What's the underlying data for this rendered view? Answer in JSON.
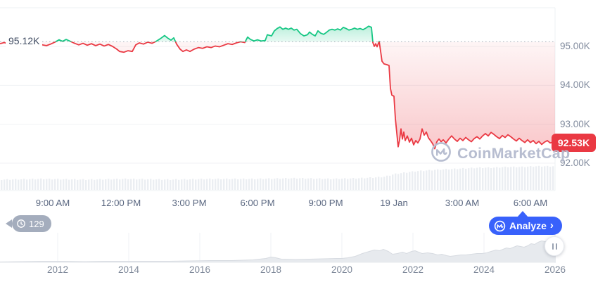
{
  "open_price": {
    "label": "95.12K"
  },
  "current_price": {
    "label": "92.53K"
  },
  "watermark": {
    "name": "CoinMarketCap"
  },
  "history_badge": {
    "count": "129"
  },
  "analyze": {
    "label": "Analyze",
    "chevron": "›"
  },
  "chart_data": {
    "type": "line",
    "title": "Crypto price chart (24h) with all-time range navigator",
    "baseline_price_k": 95.12,
    "last_price_k": 92.53,
    "unit": "K USD",
    "ylim_k": [
      91.8,
      96.0
    ],
    "grid": true,
    "colors": {
      "up": "#16c784",
      "down": "#ea3943",
      "accent_blue": "#3861fb",
      "badge_red": "#ea3943",
      "badge_gray": "#a4adbd",
      "baseline_dotted": "#a8aeba"
    },
    "y_axis": {
      "ticks": [
        {
          "label": "95.00K",
          "value": 95
        },
        {
          "label": "94.00K",
          "value": 94
        },
        {
          "label": "93.00K",
          "value": 93
        },
        {
          "label": "92.00K",
          "value": 92
        }
      ]
    },
    "x_axis": {
      "ticks": [
        "9:00 AM",
        "12:00 PM",
        "3:00 PM",
        "6:00 PM",
        "9:00 PM",
        "19 Jan",
        "3:00 AM",
        "6:00 AM"
      ]
    },
    "price_points": [
      [
        0,
        95.07
      ],
      [
        6,
        95.1
      ],
      [
        12,
        95.06
      ],
      [
        18,
        95.09
      ],
      [
        24,
        95.05
      ],
      [
        30,
        95.08
      ],
      [
        36,
        95.04
      ],
      [
        42,
        95.08
      ],
      [
        48,
        95.05
      ],
      [
        54,
        95.09
      ],
      [
        60,
        95.04
      ],
      [
        66,
        95.02
      ],
      [
        72,
        95.06
      ],
      [
        78,
        95.11
      ],
      [
        84,
        95.17
      ],
      [
        89,
        95.13
      ],
      [
        94,
        95.18
      ],
      [
        100,
        95.13
      ],
      [
        106,
        95.08
      ],
      [
        112,
        95.04
      ],
      [
        118,
        95.08
      ],
      [
        124,
        95.03
      ],
      [
        130,
        95.07
      ],
      [
        136,
        95.02
      ],
      [
        142,
        95.06
      ],
      [
        148,
        95.01
      ],
      [
        154,
        95.05
      ],
      [
        160,
        95.0
      ],
      [
        166,
        94.93
      ],
      [
        170,
        94.87
      ],
      [
        176,
        94.85
      ],
      [
        182,
        94.89
      ],
      [
        188,
        94.87
      ],
      [
        193,
        95.04
      ],
      [
        198,
        95.09
      ],
      [
        204,
        95.06
      ],
      [
        210,
        95.11
      ],
      [
        216,
        95.08
      ],
      [
        222,
        95.13
      ],
      [
        228,
        95.2
      ],
      [
        234,
        95.28
      ],
      [
        238,
        95.22
      ],
      [
        243,
        95.16
      ],
      [
        247,
        95.22
      ],
      [
        251,
        95.06
      ],
      [
        256,
        94.93
      ],
      [
        260,
        94.87
      ],
      [
        265,
        94.91
      ],
      [
        270,
        94.87
      ],
      [
        276,
        94.93
      ],
      [
        282,
        94.97
      ],
      [
        288,
        94.95
      ],
      [
        294,
        94.99
      ],
      [
        300,
        94.97
      ],
      [
        306,
        95.01
      ],
      [
        312,
        94.99
      ],
      [
        318,
        95.03
      ],
      [
        324,
        95.07
      ],
      [
        330,
        95.05
      ],
      [
        336,
        95.09
      ],
      [
        342,
        95.12
      ],
      [
        348,
        95.1
      ],
      [
        352,
        95.24
      ],
      [
        356,
        95.18
      ],
      [
        361,
        95.14
      ],
      [
        366,
        95.17
      ],
      [
        371,
        95.14
      ],
      [
        377,
        95.15
      ],
      [
        380,
        95.3
      ],
      [
        386,
        95.27
      ],
      [
        390,
        95.4
      ],
      [
        394,
        95.46
      ],
      [
        398,
        95.5
      ],
      [
        402,
        95.44
      ],
      [
        406,
        95.47
      ],
      [
        410,
        95.44
      ],
      [
        414,
        95.47
      ],
      [
        418,
        95.42
      ],
      [
        422,
        95.44
      ],
      [
        427,
        95.33
      ],
      [
        432,
        95.27
      ],
      [
        437,
        95.3
      ],
      [
        440,
        95.37
      ],
      [
        444,
        95.31
      ],
      [
        448,
        95.27
      ],
      [
        452,
        95.4
      ],
      [
        456,
        95.34
      ],
      [
        460,
        95.31
      ],
      [
        464,
        95.36
      ],
      [
        468,
        95.42
      ],
      [
        472,
        95.44
      ],
      [
        476,
        95.42
      ],
      [
        480,
        95.45
      ],
      [
        484,
        95.42
      ],
      [
        488,
        95.49
      ],
      [
        492,
        95.46
      ],
      [
        496,
        95.42
      ],
      [
        500,
        95.44
      ],
      [
        504,
        95.47
      ],
      [
        508,
        95.44
      ],
      [
        512,
        95.46
      ],
      [
        516,
        95.43
      ],
      [
        520,
        95.47
      ],
      [
        524,
        95.52
      ],
      [
        528,
        95.49
      ],
      [
        530,
        95.1
      ],
      [
        532,
        95.0
      ],
      [
        534,
        95.07
      ],
      [
        536,
        94.99
      ],
      [
        539,
        95.13
      ],
      [
        541,
        94.88
      ],
      [
        543,
        94.62
      ],
      [
        546,
        94.55
      ],
      [
        550,
        94.53
      ],
      [
        553,
        94.51
      ],
      [
        555,
        93.92
      ],
      [
        557,
        93.75
      ],
      [
        560,
        93.72
      ],
      [
        562,
        93.15
      ],
      [
        564,
        92.78
      ],
      [
        566,
        92.42
      ],
      [
        568,
        92.6
      ],
      [
        570,
        92.88
      ],
      [
        572,
        92.62
      ],
      [
        574,
        92.8
      ],
      [
        576,
        92.58
      ],
      [
        579,
        92.7
      ],
      [
        582,
        92.54
      ],
      [
        585,
        92.64
      ],
      [
        588,
        92.47
      ],
      [
        591,
        92.58
      ],
      [
        594,
        92.52
      ],
      [
        597,
        92.62
      ],
      [
        600,
        92.88
      ],
      [
        603,
        92.72
      ],
      [
        606,
        92.8
      ],
      [
        609,
        92.65
      ],
      [
        612,
        92.58
      ],
      [
        615,
        92.5
      ],
      [
        618,
        92.37
      ],
      [
        621,
        92.55
      ],
      [
        624,
        92.62
      ],
      [
        627,
        92.55
      ],
      [
        630,
        92.6
      ],
      [
        634,
        92.52
      ],
      [
        638,
        92.62
      ],
      [
        642,
        92.7
      ],
      [
        646,
        92.62
      ],
      [
        650,
        92.56
      ],
      [
        654,
        92.64
      ],
      [
        658,
        92.58
      ],
      [
        662,
        92.66
      ],
      [
        666,
        92.6
      ],
      [
        670,
        92.55
      ],
      [
        674,
        92.63
      ],
      [
        678,
        92.68
      ],
      [
        682,
        92.62
      ],
      [
        686,
        92.7
      ],
      [
        690,
        92.76
      ],
      [
        694,
        92.7
      ],
      [
        698,
        92.79
      ],
      [
        702,
        92.74
      ],
      [
        706,
        92.68
      ],
      [
        710,
        92.63
      ],
      [
        714,
        92.71
      ],
      [
        718,
        92.66
      ],
      [
        722,
        92.73
      ],
      [
        726,
        92.68
      ],
      [
        730,
        92.62
      ],
      [
        734,
        92.57
      ],
      [
        738,
        92.64
      ],
      [
        742,
        92.58
      ],
      [
        746,
        92.53
      ],
      [
        750,
        92.6
      ],
      [
        754,
        92.53
      ],
      [
        758,
        92.58
      ],
      [
        762,
        92.5
      ],
      [
        766,
        92.56
      ],
      [
        770,
        92.48
      ],
      [
        774,
        92.54
      ],
      [
        778,
        92.58
      ],
      [
        782,
        92.52
      ],
      [
        786,
        92.54
      ],
      [
        789,
        92.53
      ]
    ],
    "volume_profile": [
      [
        0,
        14
      ],
      [
        60,
        15
      ],
      [
        120,
        14
      ],
      [
        180,
        15
      ],
      [
        240,
        14
      ],
      [
        300,
        15
      ],
      [
        360,
        15
      ],
      [
        420,
        16
      ],
      [
        470,
        15
      ],
      [
        510,
        16
      ],
      [
        530,
        17
      ],
      [
        545,
        18
      ],
      [
        560,
        22
      ],
      [
        575,
        24
      ],
      [
        590,
        26
      ],
      [
        605,
        27
      ],
      [
        620,
        28
      ],
      [
        640,
        29
      ],
      [
        660,
        30
      ],
      [
        680,
        31
      ],
      [
        700,
        31
      ],
      [
        720,
        32
      ],
      [
        740,
        32
      ],
      [
        760,
        33
      ],
      [
        789,
        33
      ]
    ],
    "navigator": {
      "year_ticks": [
        "2012",
        "2014",
        "2016",
        "2018",
        "2020",
        "2022",
        "2024",
        "2026"
      ],
      "points": [
        [
          0,
          1
        ],
        [
          30,
          1.5
        ],
        [
          60,
          2
        ],
        [
          90,
          2
        ],
        [
          120,
          1.5
        ],
        [
          150,
          2
        ],
        [
          180,
          2
        ],
        [
          210,
          2
        ],
        [
          240,
          2
        ],
        [
          270,
          2.5
        ],
        [
          300,
          3
        ],
        [
          330,
          3
        ],
        [
          360,
          4
        ],
        [
          378,
          6
        ],
        [
          385,
          8
        ],
        [
          392,
          7
        ],
        [
          400,
          5
        ],
        [
          420,
          4.5
        ],
        [
          440,
          5
        ],
        [
          460,
          5.5
        ],
        [
          478,
          6
        ],
        [
          486,
          6
        ],
        [
          495,
          7
        ],
        [
          505,
          9
        ],
        [
          515,
          13
        ],
        [
          525,
          16
        ],
        [
          532,
          18
        ],
        [
          540,
          17
        ],
        [
          545,
          19
        ],
        [
          552,
          16
        ],
        [
          558,
          12
        ],
        [
          565,
          13
        ],
        [
          572,
          15
        ],
        [
          578,
          13
        ],
        [
          585,
          16
        ],
        [
          590,
          17
        ],
        [
          595,
          15
        ],
        [
          600,
          13
        ],
        [
          608,
          14
        ],
        [
          615,
          13
        ],
        [
          622,
          11
        ],
        [
          628,
          12
        ],
        [
          635,
          10
        ],
        [
          640,
          9
        ],
        [
          648,
          10
        ],
        [
          655,
          11
        ],
        [
          662,
          11
        ],
        [
          670,
          12
        ],
        [
          678,
          13
        ],
        [
          685,
          13
        ],
        [
          692,
          14
        ],
        [
          698,
          16
        ],
        [
          705,
          18
        ],
        [
          710,
          17
        ],
        [
          715,
          19
        ],
        [
          720,
          21
        ],
        [
          725,
          20
        ],
        [
          730,
          22
        ],
        [
          735,
          24
        ],
        [
          740,
          23
        ],
        [
          745,
          22
        ],
        [
          750,
          24
        ],
        [
          755,
          27
        ],
        [
          760,
          26
        ],
        [
          765,
          29
        ],
        [
          770,
          31
        ],
        [
          775,
          30
        ],
        [
          780,
          33
        ],
        [
          784,
          35
        ],
        [
          787,
          33
        ],
        [
          790,
          34
        ]
      ]
    }
  }
}
